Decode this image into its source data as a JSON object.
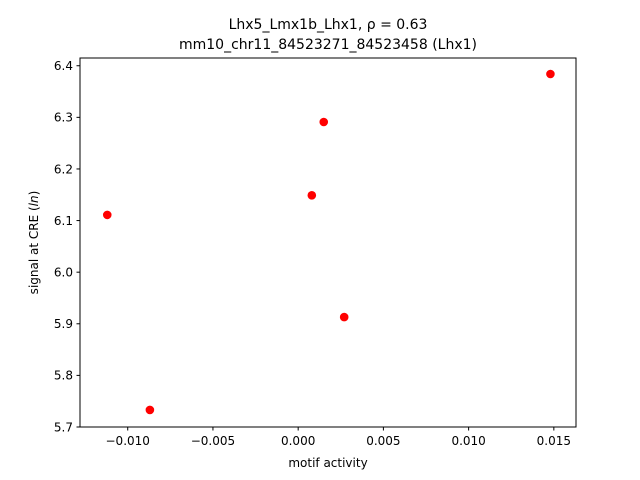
{
  "chart_data": {
    "type": "scatter",
    "title": "Lhx5_Lmx1b_Lhx1, ρ = 0.63",
    "subtitle": "mm10_chr11_84523271_84523458 (Lhx1)",
    "xlabel": "motif activity",
    "ylabel_prefix": "signal at CRE (",
    "ylabel_italic": "ln",
    "ylabel_suffix": ")",
    "xlim": [
      -0.0128,
      0.0163
    ],
    "ylim": [
      5.7,
      6.415
    ],
    "x_ticks": [
      {
        "value": -0.01,
        "label": "−0.010"
      },
      {
        "value": -0.005,
        "label": "−0.005"
      },
      {
        "value": 0.0,
        "label": "0.000"
      },
      {
        "value": 0.005,
        "label": "0.005"
      },
      {
        "value": 0.01,
        "label": "0.010"
      },
      {
        "value": 0.015,
        "label": "0.015"
      }
    ],
    "y_ticks": [
      {
        "value": 5.7,
        "label": "5.7"
      },
      {
        "value": 5.8,
        "label": "5.8"
      },
      {
        "value": 5.9,
        "label": "5.9"
      },
      {
        "value": 6.0,
        "label": "6.0"
      },
      {
        "value": 6.1,
        "label": "6.1"
      },
      {
        "value": 6.2,
        "label": "6.2"
      },
      {
        "value": 6.3,
        "label": "6.3"
      },
      {
        "value": 6.4,
        "label": "6.4"
      }
    ],
    "grid": false,
    "marker_color": "#ff0000",
    "points": [
      {
        "x": -0.0112,
        "y": 6.111
      },
      {
        "x": -0.0087,
        "y": 5.733
      },
      {
        "x": 0.0008,
        "y": 6.149
      },
      {
        "x": 0.0015,
        "y": 6.291
      },
      {
        "x": 0.0027,
        "y": 5.913
      },
      {
        "x": 0.0148,
        "y": 6.384
      }
    ]
  }
}
